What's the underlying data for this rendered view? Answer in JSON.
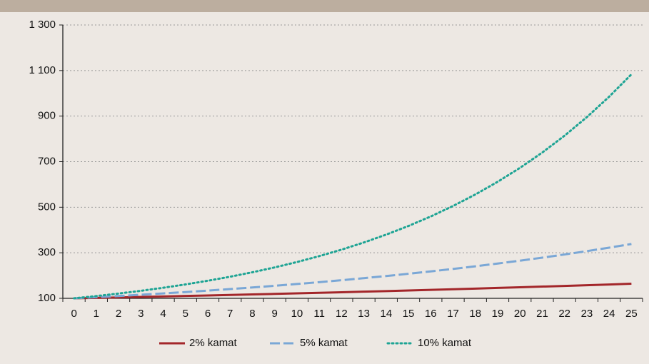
{
  "chart_data": {
    "type": "line",
    "x": [
      0,
      1,
      2,
      3,
      4,
      5,
      6,
      7,
      8,
      9,
      10,
      11,
      12,
      13,
      14,
      15,
      16,
      17,
      18,
      19,
      20,
      21,
      22,
      23,
      24,
      25
    ],
    "series": [
      {
        "name": "2% kamat",
        "color": "#a3262a",
        "style": "solid",
        "values": [
          100,
          102,
          104.0,
          106.1,
          108.2,
          110.4,
          112.6,
          114.9,
          117.2,
          119.5,
          121.9,
          124.3,
          126.8,
          129.4,
          131.9,
          134.6,
          137.3,
          140.0,
          142.8,
          145.7,
          148.6,
          151.6,
          154.6,
          157.7,
          160.8,
          164.1
        ]
      },
      {
        "name": "5% kamat",
        "color": "#7aa7d6",
        "style": "dashed",
        "values": [
          100,
          105,
          110.3,
          115.8,
          121.6,
          127.6,
          134.0,
          140.7,
          147.7,
          155.1,
          162.9,
          171.0,
          179.6,
          188.6,
          198.0,
          207.9,
          218.3,
          229.2,
          240.7,
          252.7,
          265.3,
          278.6,
          292.5,
          307.2,
          322.5,
          338.6
        ]
      },
      {
        "name": "10% kamat",
        "color": "#1ea494",
        "style": "dotted",
        "values": [
          100,
          110,
          121,
          133.1,
          146.4,
          161.1,
          177.2,
          194.9,
          214.4,
          235.8,
          259.4,
          285.3,
          313.8,
          345.2,
          379.7,
          417.7,
          459.5,
          505.4,
          556.0,
          611.6,
          672.7,
          740.0,
          814.0,
          895.4,
          985.0,
          1083.5
        ]
      }
    ],
    "xlim": [
      -0.5,
      25.5
    ],
    "ylim": [
      100,
      1300
    ],
    "yticks": [
      100,
      300,
      500,
      700,
      900,
      {
        "value": 1100,
        "label": "1 100"
      },
      {
        "value": 1300,
        "label": "1 300"
      }
    ],
    "grid": true,
    "legend": "bottom"
  }
}
